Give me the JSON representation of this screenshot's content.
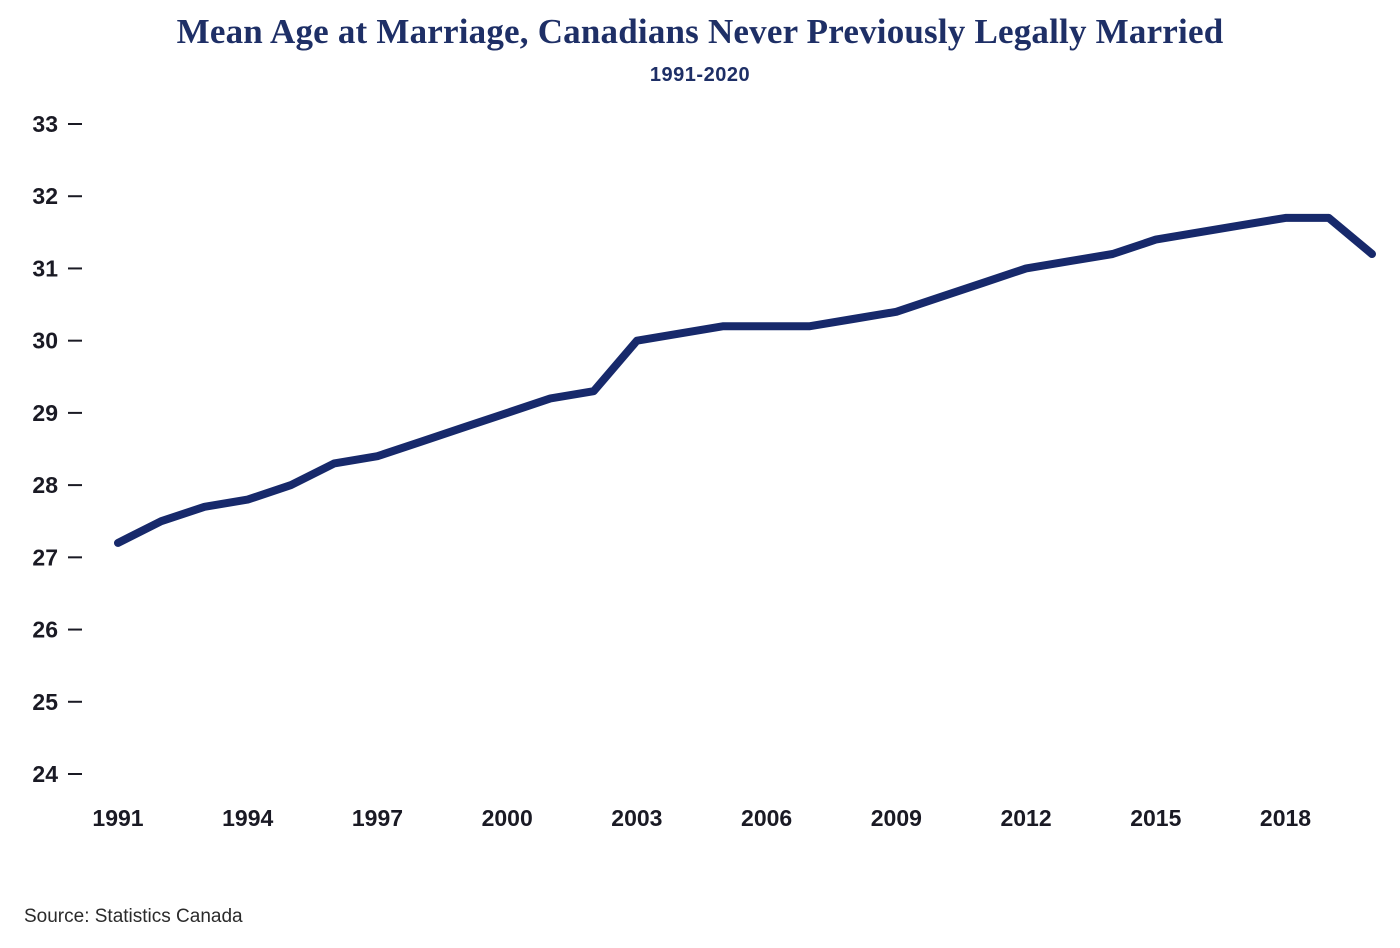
{
  "header": {
    "title": "Mean Age at Marriage, Canadians Never Previously Legally Married",
    "subtitle": "1991-2020"
  },
  "footer": {
    "source": "Source: Statistics Canada"
  },
  "colors": {
    "accent_navy": "#1e2f66",
    "line_navy": "#17296b",
    "tick_text": "#1a1a24"
  },
  "chart_data": {
    "type": "line",
    "title": "Mean Age at Marriage, Canadians Never Previously Legally Married",
    "subtitle": "1991-2020",
    "xlabel": "",
    "ylabel": "",
    "x": [
      1991,
      1992,
      1993,
      1994,
      1995,
      1996,
      1997,
      1998,
      1999,
      2000,
      2001,
      2002,
      2003,
      2004,
      2005,
      2006,
      2007,
      2008,
      2009,
      2010,
      2011,
      2012,
      2013,
      2014,
      2015,
      2016,
      2017,
      2018,
      2019,
      2020
    ],
    "series": [
      {
        "name": "Mean age at marriage",
        "values": [
          27.2,
          27.5,
          27.7,
          27.8,
          28.0,
          28.3,
          28.4,
          28.6,
          28.8,
          29.0,
          29.2,
          29.3,
          30.0,
          30.1,
          30.2,
          30.2,
          30.2,
          30.3,
          30.4,
          30.6,
          30.8,
          31.0,
          31.1,
          31.2,
          31.4,
          31.5,
          31.6,
          31.7,
          31.7,
          31.2
        ]
      }
    ],
    "ylim": [
      24,
      33
    ],
    "yticks": [
      24,
      25,
      26,
      27,
      28,
      29,
      30,
      31,
      32,
      33
    ],
    "xticks": [
      1991,
      1994,
      1997,
      2000,
      2003,
      2006,
      2009,
      2012,
      2015,
      2018
    ],
    "grid": false,
    "legend": "none",
    "line_color": "#17296b",
    "line_width": 8,
    "source": "Source: Statistics Canada"
  }
}
